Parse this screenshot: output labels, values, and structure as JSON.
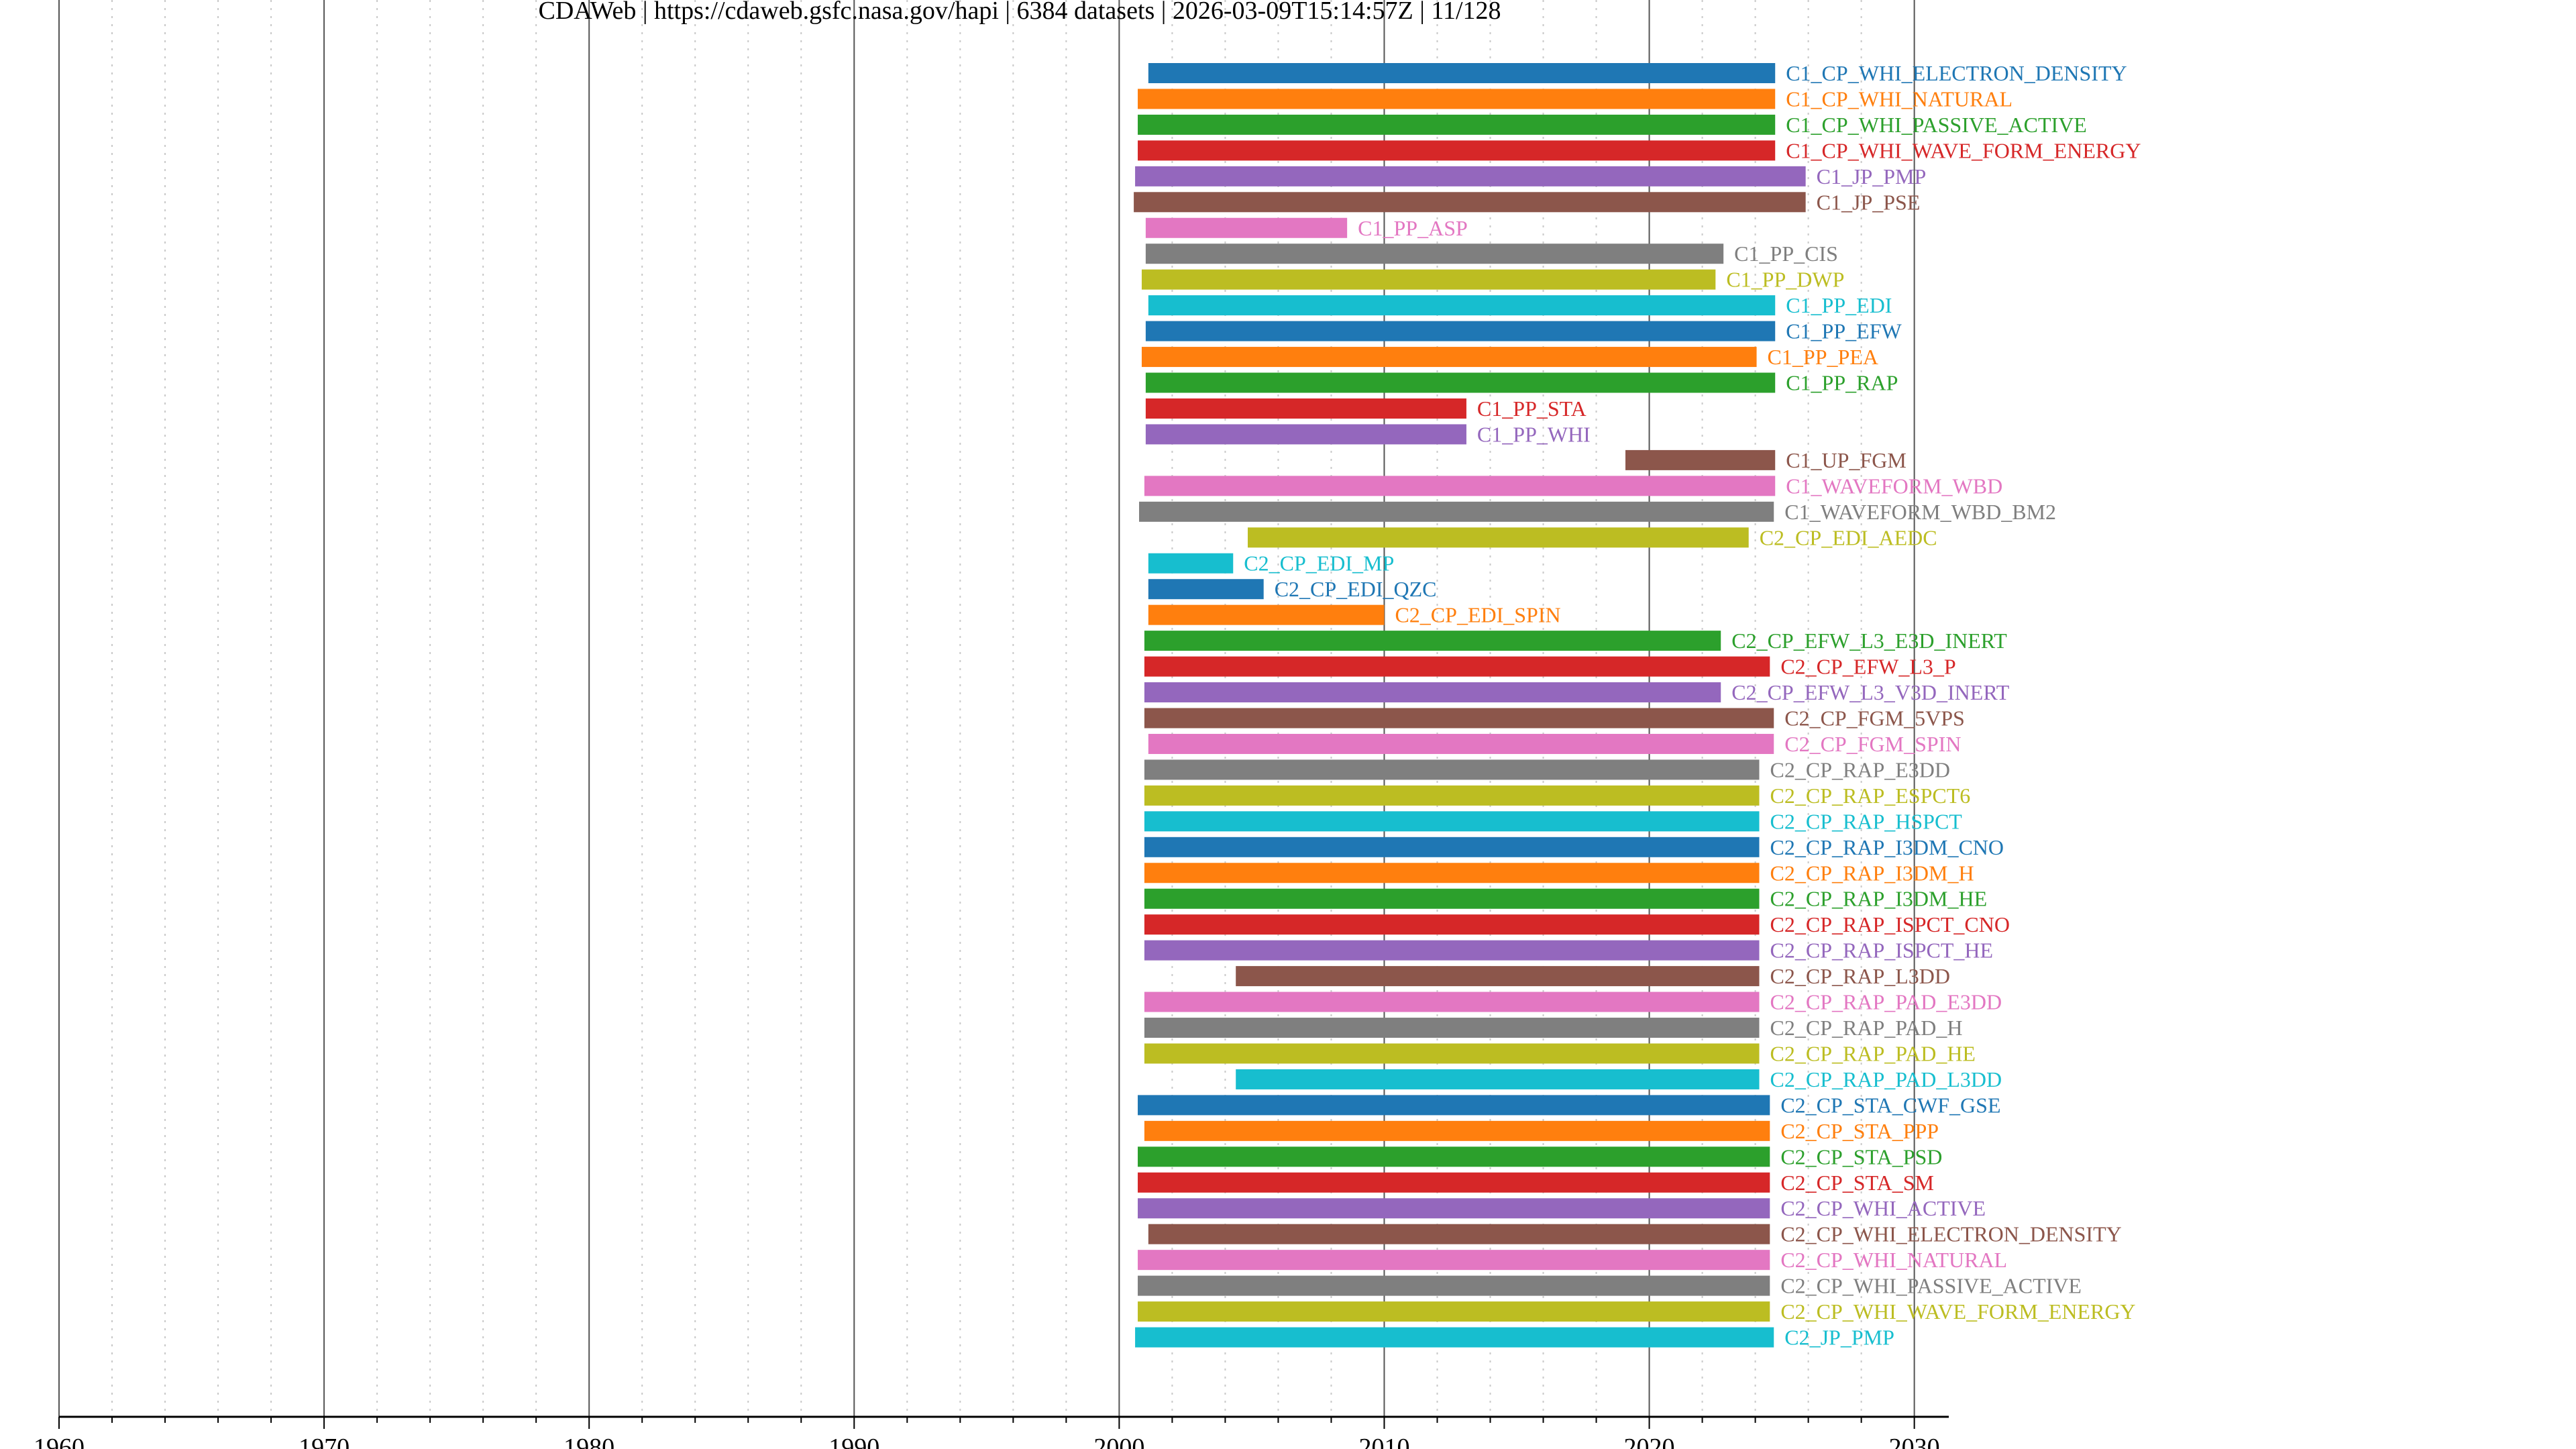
{
  "chart_data": {
    "type": "bar",
    "orientation": "horizontal-timeline",
    "title": "CDAWeb | https://cdaweb.gsfc.nasa.gov/hapi | 6384 datasets | 2026-03-09T15:14:57Z | 11/128",
    "xlabel": "",
    "ylabel": "",
    "xlim": [
      1960,
      2031.3
    ],
    "xticks": [
      "1960",
      "1970",
      "1980",
      "1990",
      "2000",
      "2010",
      "2020",
      "2030"
    ],
    "grid": "vertical major every 10 years, minor dotted every 2 years",
    "legend": "none; labels at bar ends",
    "palette": [
      "#1f77b4",
      "#ff7f0e",
      "#2ca02c",
      "#d62728",
      "#9467bd",
      "#8c564b",
      "#e377c2",
      "#7f7f7f",
      "#bcbd22",
      "#17becf"
    ],
    "datasets": [
      {
        "name": "C1_CP_WHI_ELECTRON_DENSITY",
        "start": 2001.1,
        "end": 2024.75
      },
      {
        "name": "C1_CP_WHI_NATURAL",
        "start": 2000.7,
        "end": 2024.75
      },
      {
        "name": "C1_CP_WHI_PASSIVE_ACTIVE",
        "start": 2000.7,
        "end": 2024.75
      },
      {
        "name": "C1_CP_WHI_WAVE_FORM_ENERGY",
        "start": 2000.7,
        "end": 2024.75
      },
      {
        "name": "C1_JP_PMP",
        "start": 2000.6,
        "end": 2025.9
      },
      {
        "name": "C1_JP_PSE",
        "start": 2000.55,
        "end": 2025.9
      },
      {
        "name": "C1_PP_ASP",
        "start": 2001.0,
        "end": 2008.6
      },
      {
        "name": "C1_PP_CIS",
        "start": 2001.0,
        "end": 2022.8
      },
      {
        "name": "C1_PP_DWP",
        "start": 2000.85,
        "end": 2022.5
      },
      {
        "name": "C1_PP_EDI",
        "start": 2001.1,
        "end": 2024.75
      },
      {
        "name": "C1_PP_EFW",
        "start": 2001.0,
        "end": 2024.75
      },
      {
        "name": "C1_PP_PEA",
        "start": 2000.85,
        "end": 2024.05
      },
      {
        "name": "C1_PP_RAP",
        "start": 2001.0,
        "end": 2024.75
      },
      {
        "name": "C1_PP_STA",
        "start": 2001.0,
        "end": 2013.1
      },
      {
        "name": "C1_PP_WHI",
        "start": 2001.0,
        "end": 2013.1
      },
      {
        "name": "C1_UP_FGM",
        "start": 2019.1,
        "end": 2024.75
      },
      {
        "name": "C1_WAVEFORM_WBD",
        "start": 2000.95,
        "end": 2024.75
      },
      {
        "name": "C1_WAVEFORM_WBD_BM2",
        "start": 2000.75,
        "end": 2024.7
      },
      {
        "name": "C2_CP_EDI_AEDC",
        "start": 2004.85,
        "end": 2023.75
      },
      {
        "name": "C2_CP_EDI_MP",
        "start": 2001.1,
        "end": 2004.3
      },
      {
        "name": "C2_CP_EDI_QZC",
        "start": 2001.1,
        "end": 2005.45
      },
      {
        "name": "C2_CP_EDI_SPIN",
        "start": 2001.1,
        "end": 2010.0
      },
      {
        "name": "C2_CP_EFW_L3_E3D_INERT",
        "start": 2000.95,
        "end": 2022.7
      },
      {
        "name": "C2_CP_EFW_L3_P",
        "start": 2000.95,
        "end": 2024.55
      },
      {
        "name": "C2_CP_EFW_L3_V3D_INERT",
        "start": 2000.95,
        "end": 2022.7
      },
      {
        "name": "C2_CP_FGM_5VPS",
        "start": 2000.95,
        "end": 2024.7
      },
      {
        "name": "C2_CP_FGM_SPIN",
        "start": 2001.1,
        "end": 2024.7
      },
      {
        "name": "C2_CP_RAP_E3DD",
        "start": 2000.95,
        "end": 2024.15
      },
      {
        "name": "C2_CP_RAP_ESPCT6",
        "start": 2000.95,
        "end": 2024.15
      },
      {
        "name": "C2_CP_RAP_HSPCT",
        "start": 2000.95,
        "end": 2024.15
      },
      {
        "name": "C2_CP_RAP_I3DM_CNO",
        "start": 2000.95,
        "end": 2024.15
      },
      {
        "name": "C2_CP_RAP_I3DM_H",
        "start": 2000.95,
        "end": 2024.15
      },
      {
        "name": "C2_CP_RAP_I3DM_HE",
        "start": 2000.95,
        "end": 2024.15
      },
      {
        "name": "C2_CP_RAP_ISPCT_CNO",
        "start": 2000.95,
        "end": 2024.15
      },
      {
        "name": "C2_CP_RAP_ISPCT_HE",
        "start": 2000.95,
        "end": 2024.15
      },
      {
        "name": "C2_CP_RAP_L3DD",
        "start": 2004.4,
        "end": 2024.15
      },
      {
        "name": "C2_CP_RAP_PAD_E3DD",
        "start": 2000.95,
        "end": 2024.15
      },
      {
        "name": "C2_CP_RAP_PAD_H",
        "start": 2000.95,
        "end": 2024.15
      },
      {
        "name": "C2_CP_RAP_PAD_HE",
        "start": 2000.95,
        "end": 2024.15
      },
      {
        "name": "C2_CP_RAP_PAD_L3DD",
        "start": 2004.4,
        "end": 2024.15
      },
      {
        "name": "C2_CP_STA_CWF_GSE",
        "start": 2000.7,
        "end": 2024.55
      },
      {
        "name": "C2_CP_STA_PPP",
        "start": 2000.95,
        "end": 2024.55
      },
      {
        "name": "C2_CP_STA_PSD",
        "start": 2000.7,
        "end": 2024.55
      },
      {
        "name": "C2_CP_STA_SM",
        "start": 2000.7,
        "end": 2024.55
      },
      {
        "name": "C2_CP_WHI_ACTIVE",
        "start": 2000.7,
        "end": 2024.55
      },
      {
        "name": "C2_CP_WHI_ELECTRON_DENSITY",
        "start": 2001.1,
        "end": 2024.55
      },
      {
        "name": "C2_CP_WHI_NATURAL",
        "start": 2000.7,
        "end": 2024.55
      },
      {
        "name": "C2_CP_WHI_PASSIVE_ACTIVE",
        "start": 2000.7,
        "end": 2024.55
      },
      {
        "name": "C2_CP_WHI_WAVE_FORM_ENERGY",
        "start": 2000.7,
        "end": 2024.55
      },
      {
        "name": "C2_JP_PMP",
        "start": 2000.6,
        "end": 2024.7
      }
    ]
  }
}
